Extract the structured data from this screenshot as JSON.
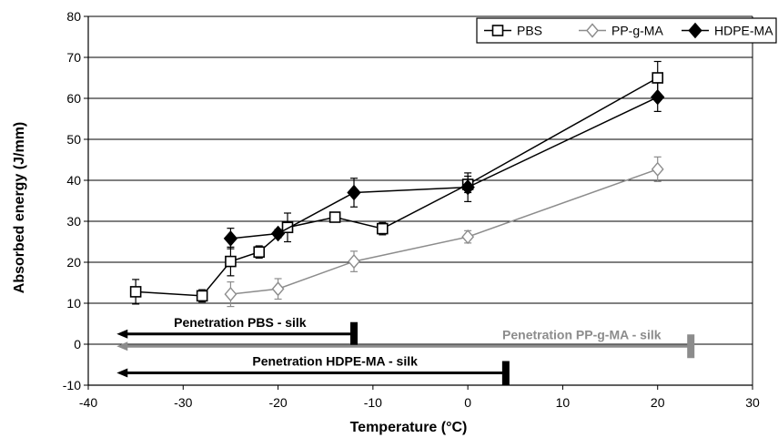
{
  "chart_data": {
    "type": "line",
    "xlabel": "Temperature (°C)",
    "ylabel": "Absorbed energy  (J/mm)",
    "xlim": [
      -40,
      30
    ],
    "ylim": [
      -10,
      80
    ],
    "x_ticks": [
      -40,
      -30,
      -20,
      -10,
      0,
      10,
      20,
      30
    ],
    "y_ticks": [
      -10,
      0,
      10,
      20,
      30,
      40,
      50,
      60,
      70,
      80
    ],
    "grid": "horizontal",
    "legend_position": "top-right",
    "series": [
      {
        "name": "PBS",
        "marker": "open-square",
        "color": "#000000",
        "points": [
          {
            "x": -35,
            "y": 12.8,
            "err": 3
          },
          {
            "x": -28,
            "y": 11.8,
            "err": 1.5
          },
          {
            "x": -25,
            "y": 20.2,
            "err": 3.5
          },
          {
            "x": -22,
            "y": 22.5,
            "err": 1.5
          },
          {
            "x": -19,
            "y": 28.5,
            "err": 3.5
          },
          {
            "x": -14,
            "y": 31,
            "err": 1
          },
          {
            "x": -9,
            "y": 28.2,
            "err": 1.5
          },
          {
            "x": 0,
            "y": 39,
            "err": 2
          },
          {
            "x": 20,
            "y": 65,
            "err": 4
          }
        ]
      },
      {
        "name": "PP-g-MA",
        "marker": "open-diamond",
        "color": "#8c8c8c",
        "points": [
          {
            "x": -25,
            "y": 12.2,
            "err": 3
          },
          {
            "x": -20,
            "y": 13.5,
            "err": 2.5
          },
          {
            "x": -12,
            "y": 20.2,
            "err": 2.5
          },
          {
            "x": 0,
            "y": 26.2,
            "err": 1.5
          },
          {
            "x": 20,
            "y": 42.7,
            "err": 3
          }
        ]
      },
      {
        "name": "HDPE-MA",
        "marker": "filled-diamond",
        "color": "#000000",
        "points": [
          {
            "x": -25,
            "y": 25.8,
            "err": 2.5
          },
          {
            "x": -20,
            "y": 27,
            "err": 1
          },
          {
            "x": -12,
            "y": 37,
            "err": 3.5
          },
          {
            "x": 0,
            "y": 38.3,
            "err": 3.5
          },
          {
            "x": 20,
            "y": 60.3,
            "err": 3.5
          }
        ]
      }
    ],
    "annotations": [
      {
        "text": "Penetration PBS - silk",
        "color": "#000000",
        "y": 2.5,
        "x_from": -12,
        "x_to": -37,
        "bar_x": -12,
        "text_x": -24
      },
      {
        "text": "Penetration PP-g-MA - silk",
        "color": "#8c8c8c",
        "y": -0.5,
        "x_from": 23.5,
        "x_to": -37,
        "bar_x": 23.5,
        "text_x": 12
      },
      {
        "text": "Penetration HDPE-MA - silk",
        "color": "#000000",
        "y": -7,
        "x_from": 4,
        "x_to": -37,
        "bar_x": 4,
        "text_x": -14
      }
    ]
  }
}
